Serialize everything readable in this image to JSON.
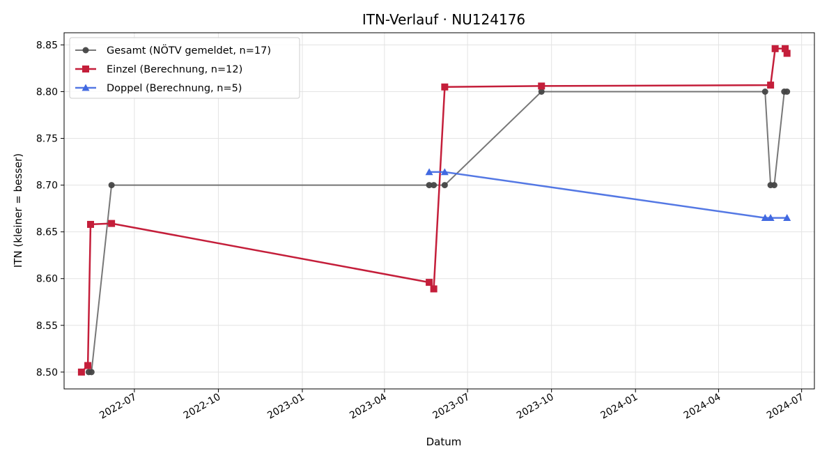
{
  "chart_data": {
    "type": "line",
    "title": "ITN-Verlauf · NU124176",
    "xlabel": "Datum",
    "ylabel": "ITN  (kleiner = besser)",
    "ylim": [
      8.482,
      8.863
    ],
    "xlim": [
      "2022-04-15",
      "2024-07-15"
    ],
    "x_ticks": [
      "2022-07",
      "2022-10",
      "2023-01",
      "2023-04",
      "2023-07",
      "2023-10",
      "2024-01",
      "2024-04",
      "2024-07"
    ],
    "y_ticks": [
      "8.50",
      "8.55",
      "8.60",
      "8.65",
      "8.70",
      "8.75",
      "8.80",
      "8.85"
    ],
    "grid": true,
    "legend_position": "top-left",
    "series": [
      {
        "name": "Gesamt (NÖTV gemeldet, n=17)",
        "color": "#555555",
        "marker": "circle",
        "points": [
          [
            "2022-05-12",
            8.5
          ],
          [
            "2022-05-15",
            8.5
          ],
          [
            "2022-06-06",
            8.7
          ],
          [
            "2023-05-20",
            8.7
          ],
          [
            "2023-05-25",
            8.7
          ],
          [
            "2023-06-06",
            8.7
          ],
          [
            "2023-09-20",
            8.8
          ],
          [
            "2024-05-22",
            8.8
          ],
          [
            "2024-05-28",
            8.7
          ],
          [
            "2024-06-01",
            8.7
          ],
          [
            "2024-06-12",
            8.8
          ],
          [
            "2024-06-15",
            8.8
          ]
        ]
      },
      {
        "name": "Einzel (Berechnung, n=12)",
        "color": "#c41e3a",
        "marker": "square",
        "points": [
          [
            "2022-05-04",
            8.5
          ],
          [
            "2022-05-11",
            8.507
          ],
          [
            "2022-05-14",
            8.658
          ],
          [
            "2022-06-06",
            8.659
          ],
          [
            "2023-05-20",
            8.596
          ],
          [
            "2023-05-25",
            8.589
          ],
          [
            "2023-06-06",
            8.805
          ],
          [
            "2023-09-20",
            8.806
          ],
          [
            "2024-05-28",
            8.807
          ],
          [
            "2024-06-02",
            8.846
          ],
          [
            "2024-06-13",
            8.846
          ],
          [
            "2024-06-15",
            8.841
          ]
        ]
      },
      {
        "name": "Doppel (Berechnung, n=5)",
        "color": "#4169e1",
        "marker": "triangle",
        "points": [
          [
            "2023-05-20",
            8.714
          ],
          [
            "2023-06-06",
            8.714
          ],
          [
            "2024-05-22",
            8.665
          ],
          [
            "2024-05-28",
            8.665
          ],
          [
            "2024-06-15",
            8.665
          ]
        ]
      }
    ]
  }
}
